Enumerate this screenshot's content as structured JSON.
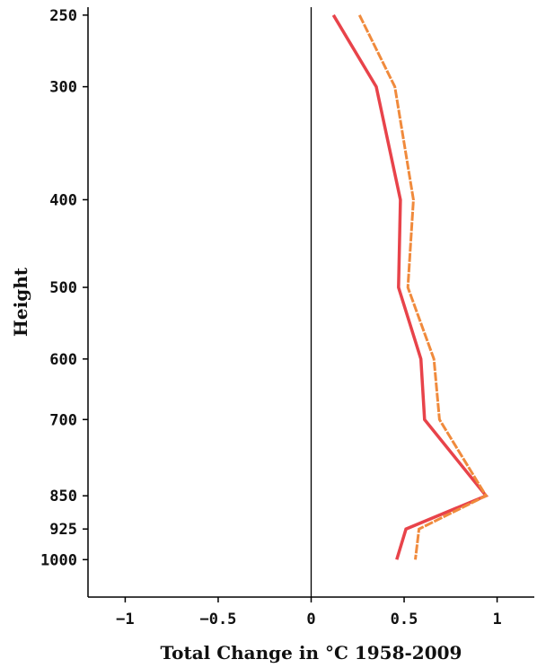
{
  "chart_data": {
    "type": "line",
    "xlabel": "Total Change in °C 1958-2009",
    "ylabel": "Height",
    "x_ticks": [
      -1,
      -0.5,
      0,
      0.5,
      1
    ],
    "x_tick_labels": [
      "−1",
      "−0.5",
      "0",
      "0.5",
      "1"
    ],
    "y_ticks": [
      250,
      300,
      400,
      500,
      600,
      700,
      850,
      925,
      1000
    ],
    "y_tick_labels": [
      "250",
      "300",
      "400",
      "500",
      "600",
      "700",
      "850",
      "925",
      "1000"
    ],
    "y_scale": "log",
    "y_inverted": true,
    "xlim": [
      -1.2,
      1.2
    ],
    "ylim": [
      245,
      1100
    ],
    "grid": false,
    "reference_line_x": 0,
    "series": [
      {
        "color": "#e8434a",
        "style": "solid",
        "points": [
          {
            "y": 250,
            "x": 0.12
          },
          {
            "y": 300,
            "x": 0.35
          },
          {
            "y": 400,
            "x": 0.48
          },
          {
            "y": 500,
            "x": 0.47
          },
          {
            "y": 600,
            "x": 0.59
          },
          {
            "y": 700,
            "x": 0.61
          },
          {
            "y": 850,
            "x": 0.94
          },
          {
            "y": 925,
            "x": 0.51
          },
          {
            "y": 1000,
            "x": 0.46
          }
        ]
      },
      {
        "color": "#f08a3c",
        "style": "dashed",
        "points": [
          {
            "y": 250,
            "x": 0.26
          },
          {
            "y": 300,
            "x": 0.45
          },
          {
            "y": 400,
            "x": 0.55
          },
          {
            "y": 500,
            "x": 0.52
          },
          {
            "y": 600,
            "x": 0.66
          },
          {
            "y": 700,
            "x": 0.69
          },
          {
            "y": 850,
            "x": 0.94
          },
          {
            "y": 925,
            "x": 0.58
          },
          {
            "y": 1000,
            "x": 0.56
          }
        ]
      }
    ]
  }
}
